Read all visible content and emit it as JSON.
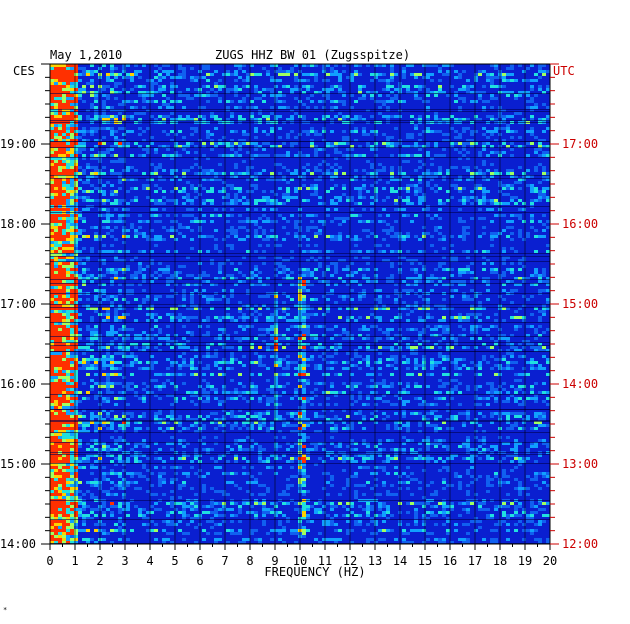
{
  "header": {
    "date": "May 1,2010",
    "station": "ZUGS HHZ BW 01 (Zugsspitze)"
  },
  "corner_left": "CES",
  "corner_right": "UTC",
  "colors": {
    "left_labels": "#000000",
    "right_labels": "#cc0000",
    "background_spectrogram": "#0a1fd0"
  },
  "chart_data": {
    "type": "heatmap",
    "xlabel": "FREQUENCY (HZ)",
    "x_ticks": [
      "0",
      "1",
      "2",
      "3",
      "4",
      "5",
      "6",
      "7",
      "8",
      "9",
      "10",
      "11",
      "12",
      "13",
      "14",
      "15",
      "16",
      "17",
      "18",
      "19",
      "20"
    ],
    "xlim": [
      0,
      20
    ],
    "y_ticks_left": [
      "19:00",
      "18:00",
      "17:00",
      "16:00",
      "15:00",
      "14:00"
    ],
    "y_ticks_right": [
      "17:00",
      "16:00",
      "15:00",
      "14:00",
      "13:00",
      "12:00"
    ],
    "y_tick_hours_utc": [
      17,
      16,
      15,
      14,
      13,
      12
    ],
    "ylim_utc_hours": [
      12,
      18
    ],
    "grid": true,
    "features": [
      {
        "name": "low-frequency energy",
        "x_range": [
          0,
          1
        ],
        "y_range_utc_hours": [
          12,
          18
        ]
      },
      {
        "name": "signal",
        "x_range": [
          9.8,
          10.2
        ],
        "y_range_utc_hours": [
          12.1,
          15.4
        ]
      },
      {
        "name": "signal",
        "x_range": [
          8.9,
          9.1
        ],
        "y_range_utc_hours": [
          13.6,
          15.2
        ]
      }
    ]
  },
  "footer_mark": "*"
}
